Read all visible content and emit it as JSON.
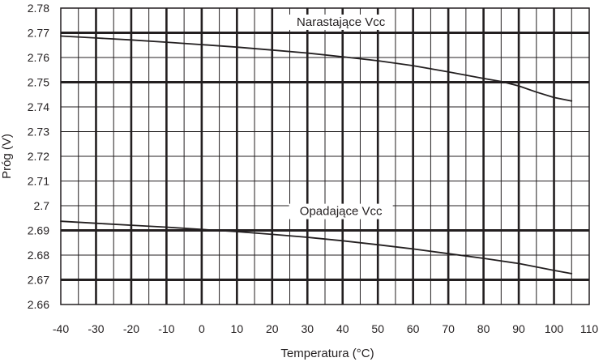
{
  "chart_data": {
    "type": "line",
    "title": "",
    "xlabel": "Temperatura (°C)",
    "ylabel": "Próg (V)",
    "xlim": [
      -40,
      110
    ],
    "ylim": [
      2.66,
      2.78
    ],
    "x_ticks": [
      "-40",
      "-30",
      "-20",
      "-10",
      "0",
      "10",
      "20",
      "30",
      "40",
      "50",
      "60",
      "70",
      "80",
      "90",
      "100",
      "110"
    ],
    "y_ticks": [
      "2.66",
      "2.67",
      "2.68",
      "2.69",
      "2.7",
      "2.71",
      "2.72",
      "2.73",
      "2.74",
      "2.75",
      "2.76",
      "2.77",
      "2.78"
    ],
    "x_minor_step": 5,
    "bold_y_grid": [
      "2.67",
      "2.69",
      "2.75",
      "2.77"
    ],
    "grid": true,
    "legend": "none",
    "series": [
      {
        "name": "Narastające Vcc",
        "points": [
          [
            -40,
            2.7687
          ],
          [
            -30,
            2.7679
          ],
          [
            -20,
            2.7671
          ],
          [
            -10,
            2.7662
          ],
          [
            0,
            2.7652
          ],
          [
            10,
            2.7642
          ],
          [
            20,
            2.763
          ],
          [
            30,
            2.7618
          ],
          [
            40,
            2.7603
          ],
          [
            50,
            2.7587
          ],
          [
            60,
            2.7567
          ],
          [
            70,
            2.7542
          ],
          [
            80,
            2.7515
          ],
          [
            85,
            2.7503
          ],
          [
            90,
            2.7485
          ],
          [
            95,
            2.746
          ],
          [
            100,
            2.7438
          ],
          [
            105,
            2.7424
          ]
        ]
      },
      {
        "name": "Opadające Vcc",
        "points": [
          [
            -40,
            2.6937
          ],
          [
            -30,
            2.6929
          ],
          [
            -20,
            2.6921
          ],
          [
            -10,
            2.6913
          ],
          [
            0,
            2.6904
          ],
          [
            10,
            2.6895
          ],
          [
            20,
            2.6884
          ],
          [
            30,
            2.6872
          ],
          [
            40,
            2.6858
          ],
          [
            50,
            2.6842
          ],
          [
            60,
            2.6825
          ],
          [
            70,
            2.6806
          ],
          [
            80,
            2.6787
          ],
          [
            90,
            2.6766
          ],
          [
            95,
            2.6752
          ],
          [
            100,
            2.6738
          ],
          [
            105,
            2.6725
          ]
        ]
      }
    ]
  }
}
